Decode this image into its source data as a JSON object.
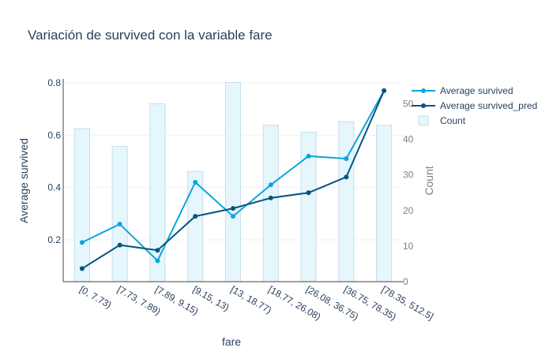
{
  "chart_data": {
    "type": "bar+line",
    "title": "Variación de survived con la variable fare",
    "xlabel": "fare",
    "ylabel": "Average survived",
    "y2label": "Count",
    "categories": [
      "[0, 7.73)",
      "[7.73, 7.89)",
      "[7.89, 9.15)",
      "[9.15, 13)",
      "[13, 18.77)",
      "[18.77, 26.08)",
      "[26.08, 36.75)",
      "[36.75, 78.35)",
      "[78.35, 512.5]"
    ],
    "ylim": [
      0.04,
      0.815
    ],
    "y_ticks": [
      0.2,
      0.4,
      0.6,
      0.8
    ],
    "y_tick_labels": [
      "0.2",
      "0.4",
      "0.6",
      "0.8"
    ],
    "y2lim": [
      0,
      57
    ],
    "y2_ticks": [
      0,
      10,
      20,
      30,
      40,
      50
    ],
    "y2_tick_labels": [
      "0",
      "10",
      "20",
      "30",
      "40",
      "50"
    ],
    "series": [
      {
        "name": "Average survived",
        "type": "line",
        "axis": "y",
        "color": "#0ba6dc",
        "values": [
          0.19,
          0.26,
          0.12,
          0.42,
          0.29,
          0.41,
          0.52,
          0.51,
          0.77
        ]
      },
      {
        "name": "Average survived_pred",
        "type": "line",
        "axis": "y",
        "color": "#04557d",
        "values": [
          0.09,
          0.18,
          0.16,
          0.29,
          0.32,
          0.36,
          0.38,
          0.44,
          0.77
        ]
      },
      {
        "name": "Count",
        "type": "bar",
        "axis": "y2",
        "color": "#e5f6fc",
        "values": [
          43,
          38,
          50,
          31,
          56,
          44,
          42,
          45,
          44
        ]
      }
    ],
    "legend_position": "top-right",
    "grid": true
  }
}
